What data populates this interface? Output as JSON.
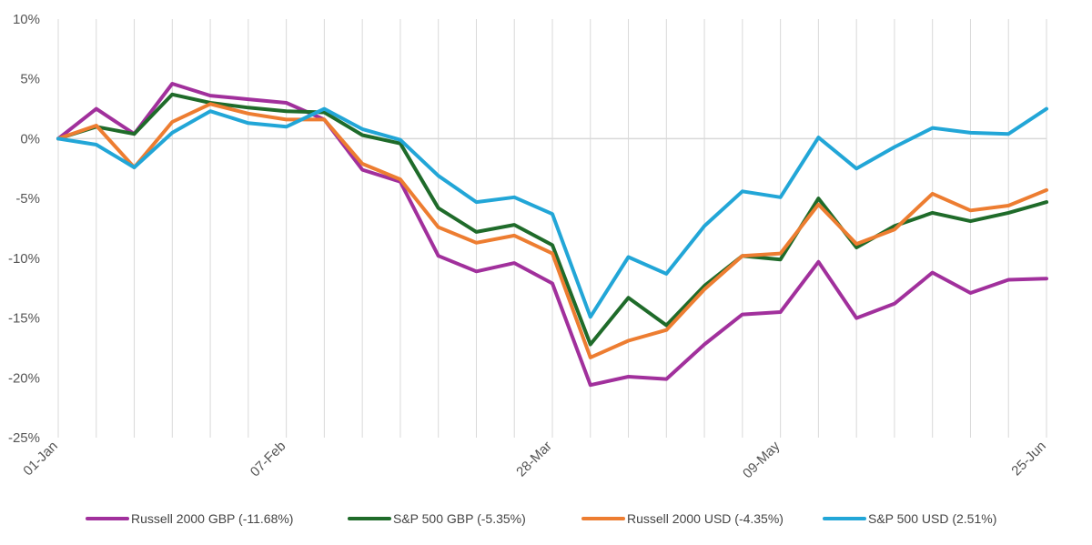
{
  "chart_data": {
    "type": "line",
    "title": "",
    "xlabel": "",
    "ylabel": "",
    "ylim": [
      -25,
      10
    ],
    "yticks": [
      10,
      5,
      0,
      -5,
      -10,
      -15,
      -20,
      -25
    ],
    "ytick_labels": [
      "10%",
      "5%",
      "0%",
      "-5%",
      "-10%",
      "-15%",
      "-20%",
      "-25%"
    ],
    "xtick_labels": [
      {
        "index": 0,
        "label": "01-Jan"
      },
      {
        "index": 6,
        "label": "07-Feb"
      },
      {
        "index": 13,
        "label": "28-Mar"
      },
      {
        "index": 19,
        "label": "09-May"
      },
      {
        "index": 26,
        "label": "25-Jun"
      }
    ],
    "grid": "vertical",
    "legend_position": "bottom",
    "series": [
      {
        "name": "Russell 2000 GBP (-11.68%)",
        "color": "#a1309c",
        "values": [
          0,
          2.5,
          0.4,
          4.6,
          3.6,
          3.3,
          3.0,
          1.6,
          -2.6,
          -3.6,
          -9.8,
          -11.1,
          -10.4,
          -12.1,
          -20.6,
          -19.9,
          -20.1,
          -17.2,
          -14.7,
          -14.5,
          -10.3,
          -15.0,
          -13.8,
          -11.2,
          -12.9,
          -11.8,
          -11.7
        ]
      },
      {
        "name": "S&P 500 GBP (-5.35%)",
        "color": "#1f6b2a",
        "values": [
          0,
          1.0,
          0.4,
          3.7,
          3.0,
          2.6,
          2.3,
          2.2,
          0.3,
          -0.4,
          -5.8,
          -7.8,
          -7.2,
          -8.9,
          -17.2,
          -13.3,
          -15.6,
          -12.3,
          -9.8,
          -10.1,
          -5.0,
          -9.1,
          -7.3,
          -6.2,
          -6.9,
          -6.2,
          -5.3
        ]
      },
      {
        "name": "Russell 2000 USD (-4.35%)",
        "color": "#ed7d31",
        "values": [
          0,
          1.1,
          -2.4,
          1.4,
          2.9,
          2.1,
          1.6,
          1.6,
          -2.1,
          -3.4,
          -7.4,
          -8.7,
          -8.1,
          -9.6,
          -18.3,
          -16.9,
          -16.0,
          -12.6,
          -9.8,
          -9.6,
          -5.5,
          -8.8,
          -7.6,
          -4.6,
          -6.0,
          -5.6,
          -4.3
        ]
      },
      {
        "name": "S&P 500 USD (2.51%)",
        "color": "#22a6d7",
        "values": [
          0,
          -0.5,
          -2.4,
          0.5,
          2.3,
          1.3,
          1.0,
          2.5,
          0.8,
          -0.1,
          -3.1,
          -5.3,
          -4.9,
          -6.3,
          -14.9,
          -9.9,
          -11.3,
          -7.3,
          -4.4,
          -4.9,
          0.1,
          -2.5,
          -0.7,
          0.9,
          0.5,
          0.4,
          2.5
        ]
      }
    ]
  }
}
